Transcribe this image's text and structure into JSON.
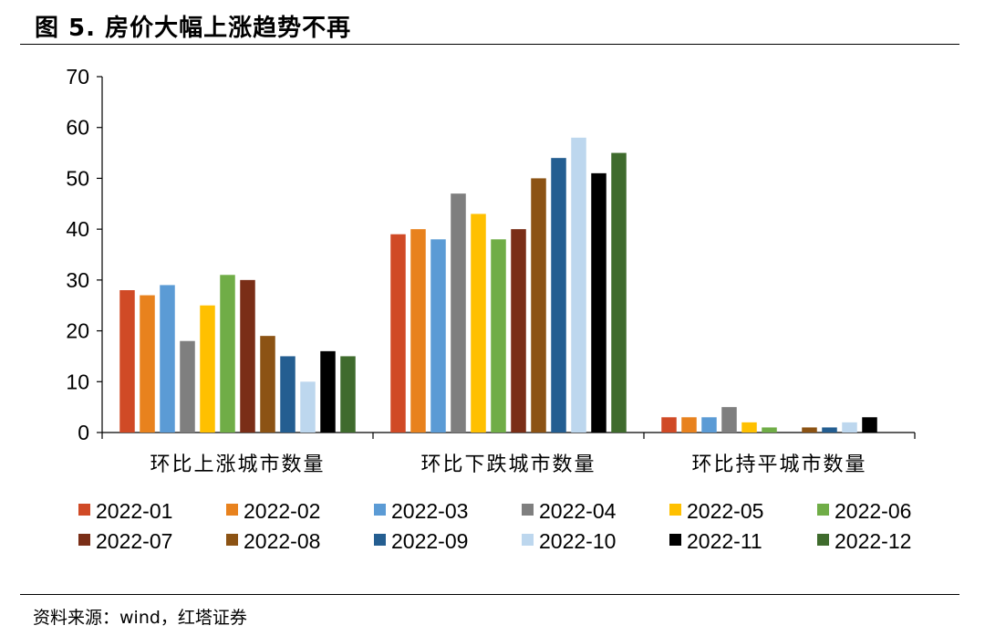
{
  "figure": {
    "title": "图 5. 房价大幅上涨趋势不再",
    "source": "资料来源：wind，红塔证券"
  },
  "chart_data": {
    "type": "bar",
    "title": "房价大幅上涨趋势不再",
    "xlabel": "",
    "ylabel": "",
    "ylim": [
      0,
      70
    ],
    "yticks": [
      0,
      10,
      20,
      30,
      40,
      50,
      60,
      70
    ],
    "grid": false,
    "legend_position": "bottom",
    "categories": [
      "环比上涨城市数量",
      "环比下跌城市数量",
      "环比持平城市数量"
    ],
    "series": [
      {
        "name": "2022-01",
        "color": "#D04A26",
        "values": [
          28,
          39,
          3
        ]
      },
      {
        "name": "2022-02",
        "color": "#E8821E",
        "values": [
          27,
          40,
          3
        ]
      },
      {
        "name": "2022-03",
        "color": "#5B9BD5",
        "values": [
          29,
          38,
          3
        ]
      },
      {
        "name": "2022-04",
        "color": "#7F7F7F",
        "values": [
          18,
          47,
          5
        ]
      },
      {
        "name": "2022-05",
        "color": "#FFC000",
        "values": [
          25,
          43,
          2
        ]
      },
      {
        "name": "2022-06",
        "color": "#70AD47",
        "values": [
          31,
          38,
          1
        ]
      },
      {
        "name": "2022-07",
        "color": "#7A2E17",
        "values": [
          30,
          40,
          0
        ]
      },
      {
        "name": "2022-08",
        "color": "#8C5314",
        "values": [
          19,
          50,
          1
        ]
      },
      {
        "name": "2022-09",
        "color": "#245E91",
        "values": [
          15,
          54,
          1
        ]
      },
      {
        "name": "2022-10",
        "color": "#BDD7EE",
        "values": [
          10,
          58,
          2
        ]
      },
      {
        "name": "2022-11",
        "color": "#000000",
        "values": [
          16,
          51,
          3
        ]
      },
      {
        "name": "2022-12",
        "color": "#3F6B2D",
        "values": [
          15,
          55,
          0
        ]
      }
    ]
  }
}
